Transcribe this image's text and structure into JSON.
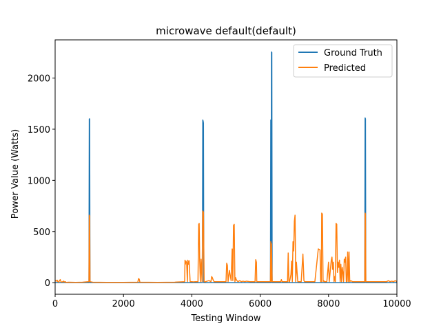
{
  "chart_data": {
    "type": "line",
    "title": "microwave default(default)",
    "xlabel": "Testing Window",
    "ylabel": "Power Value (Watts)",
    "xlim": [
      0,
      10000
    ],
    "ylim": [
      -113,
      2373
    ],
    "x_ticks": [
      0,
      2000,
      4000,
      6000,
      8000,
      10000
    ],
    "y_ticks": [
      0,
      500,
      1000,
      1500,
      2000
    ],
    "grid": false,
    "legend_position": "top-right",
    "series": [
      {
        "name": "Ground Truth",
        "color": "#1f77b4",
        "x": [
          0,
          990,
          1000,
          1010,
          1020,
          4310,
          4320,
          4330,
          4340,
          4350,
          6300,
          6310,
          6320,
          6330,
          6340,
          6350,
          9060,
          9070,
          9080,
          9090,
          10000
        ],
        "y": [
          0,
          0,
          1600,
          1600,
          0,
          0,
          1590,
          1580,
          1560,
          0,
          0,
          1590,
          0,
          2255,
          2250,
          0,
          0,
          1610,
          1600,
          0,
          0
        ]
      },
      {
        "name": "Predicted",
        "color": "#ff7f0e",
        "x": [
          0,
          40,
          60,
          80,
          100,
          130,
          150,
          170,
          200,
          250,
          280,
          300,
          320,
          400,
          600,
          800,
          990,
          1000,
          1010,
          1020,
          1100,
          1500,
          2000,
          2420,
          2440,
          2460,
          2480,
          3000,
          3500,
          3790,
          3800,
          3810,
          3830,
          3850,
          3870,
          3880,
          3900,
          3920,
          3950,
          4000,
          4050,
          4100,
          4180,
          4200,
          4215,
          4230,
          4250,
          4270,
          4300,
          4320,
          4340,
          4360,
          4380,
          4400,
          4500,
          4560,
          4580,
          4600,
          4620,
          4650,
          4700,
          4800,
          5000,
          5020,
          5040,
          5060,
          5100,
          5150,
          5180,
          5200,
          5220,
          5240,
          5260,
          5280,
          5300,
          5320,
          5350,
          5400,
          5450,
          5500,
          5550,
          5600,
          5700,
          5800,
          5850,
          5870,
          5890,
          5900,
          5920,
          5950,
          6000,
          6100,
          6200,
          6300,
          6310,
          6320,
          6330,
          6350,
          6400,
          6500,
          6600,
          6620,
          6640,
          6700,
          6800,
          6820,
          6840,
          6860,
          6900,
          6920,
          6940,
          6960,
          6980,
          7000,
          7020,
          7040,
          7060,
          7080,
          7100,
          7120,
          7150,
          7200,
          7250,
          7280,
          7300,
          7320,
          7350,
          7400,
          7500,
          7600,
          7700,
          7750,
          7770,
          7790,
          7800,
          7820,
          7840,
          7860,
          7880,
          7900,
          7950,
          8000,
          8020,
          8040,
          8060,
          8080,
          8100,
          8120,
          8140,
          8160,
          8180,
          8200,
          8220,
          8240,
          8260,
          8280,
          8300,
          8320,
          8340,
          8360,
          8380,
          8400,
          8420,
          8440,
          8460,
          8480,
          8500,
          8520,
          8540,
          8560,
          8580,
          8600,
          8620,
          8650,
          8700,
          8800,
          8900,
          9000,
          9050,
          9060,
          9070,
          9080,
          9090,
          9100,
          9200,
          9400,
          9600,
          9700,
          9750,
          9800,
          9850,
          9900,
          9950,
          10000
        ],
        "y": [
          20,
          15,
          25,
          10,
          5,
          20,
          30,
          10,
          5,
          15,
          5,
          10,
          3,
          5,
          3,
          5,
          10,
          660,
          650,
          10,
          5,
          3,
          3,
          5,
          40,
          35,
          5,
          3,
          5,
          10,
          220,
          180,
          210,
          190,
          10,
          220,
          180,
          215,
          10,
          10,
          8,
          10,
          10,
          570,
          580,
          220,
          10,
          230,
          10,
          700,
          690,
          10,
          8,
          10,
          20,
          10,
          60,
          50,
          30,
          10,
          10,
          10,
          10,
          190,
          170,
          10,
          120,
          20,
          330,
          20,
          560,
          570,
          10,
          50,
          30,
          20,
          10,
          20,
          10,
          15,
          10,
          15,
          10,
          10,
          10,
          225,
          200,
          10,
          10,
          10,
          10,
          10,
          10,
          10,
          400,
          10,
          380,
          10,
          10,
          10,
          10,
          30,
          10,
          10,
          10,
          290,
          10,
          10,
          80,
          210,
          10,
          400,
          310,
          600,
          660,
          10,
          200,
          100,
          10,
          10,
          10,
          10,
          280,
          20,
          10,
          10,
          10,
          10,
          10,
          10,
          330,
          320,
          10,
          10,
          680,
          670,
          10,
          20,
          10,
          10,
          10,
          200,
          10,
          80,
          150,
          220,
          250,
          130,
          200,
          10,
          60,
          10,
          580,
          570,
          100,
          200,
          150,
          220,
          10,
          180,
          10,
          150,
          100,
          10,
          230,
          200,
          250,
          10,
          10,
          300,
          10,
          300,
          10,
          20,
          10,
          10,
          10,
          10,
          10,
          10,
          680,
          670,
          10,
          10,
          10,
          10,
          10,
          10,
          20,
          10,
          15,
          10,
          20,
          10
        ]
      }
    ]
  }
}
